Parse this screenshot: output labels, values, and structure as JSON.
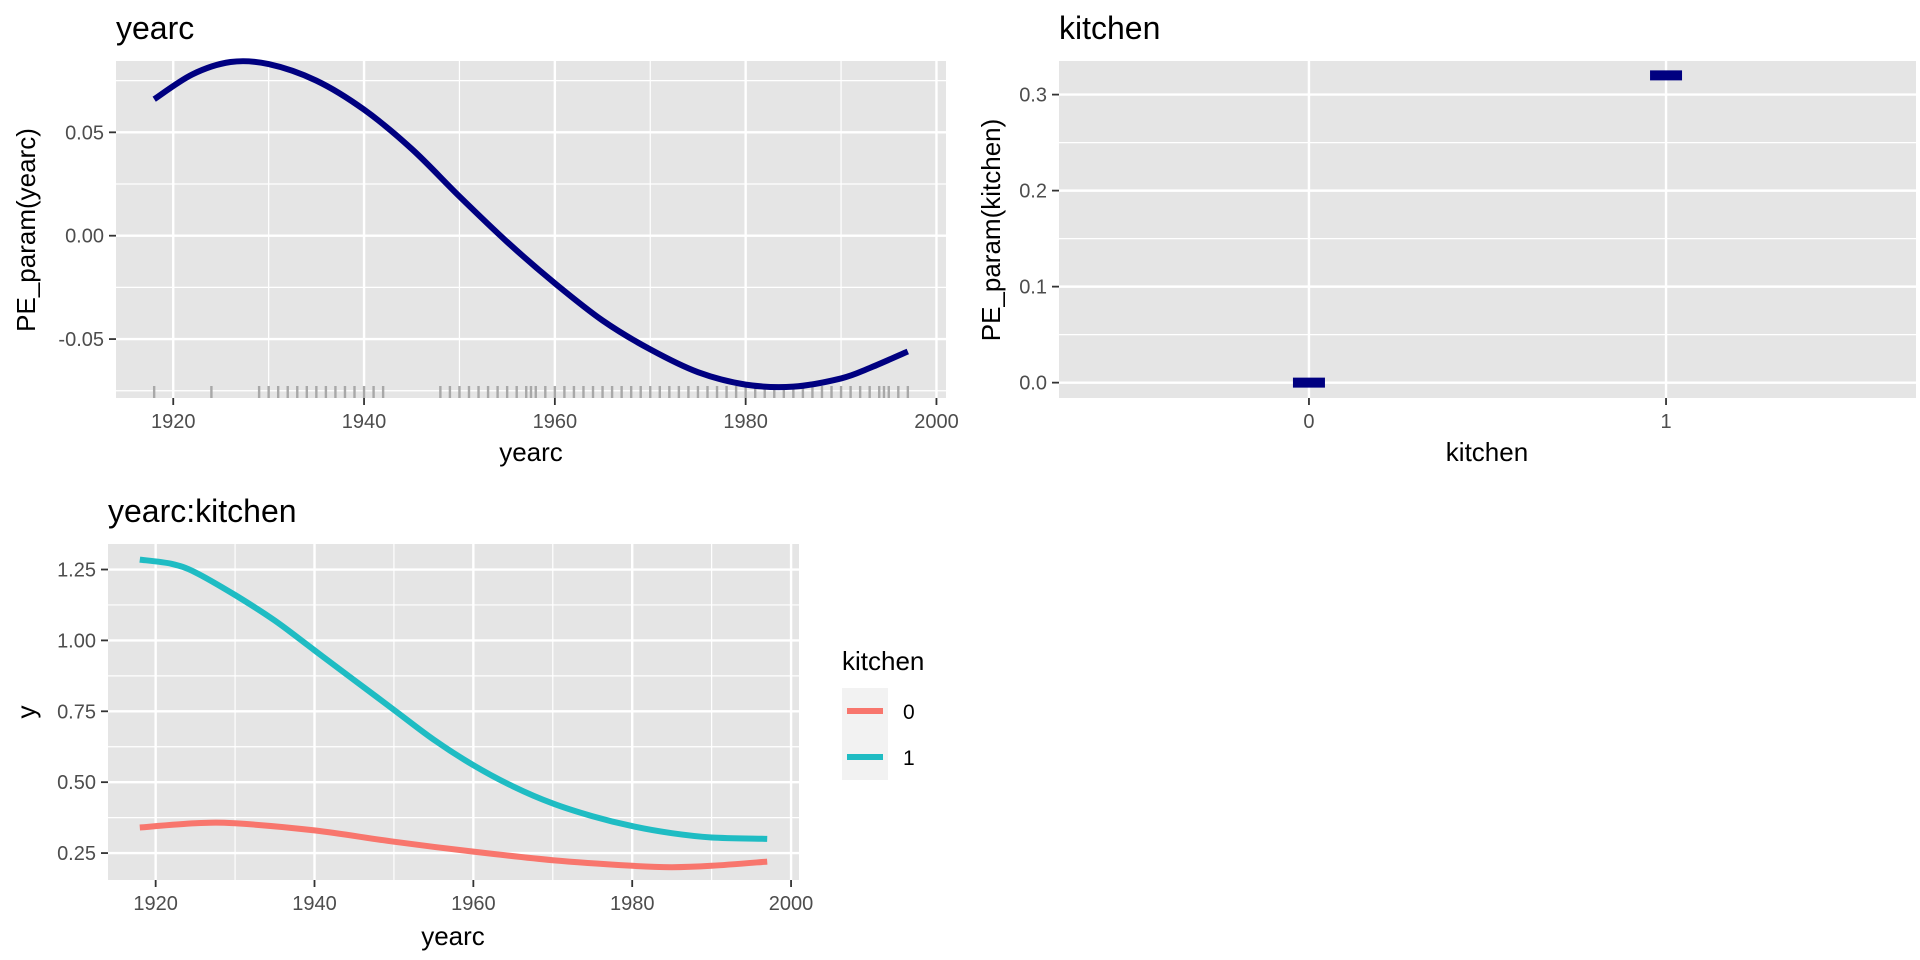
{
  "colors": {
    "panel_bg": "#e5e5e5",
    "grid": "#ffffff",
    "tick": "#333333",
    "tick_text": "#4d4d4d",
    "navy": "#000080",
    "rug": "#a8a8a8",
    "series_0": "#f8766d",
    "series_1": "#1fbcc3",
    "legend_bg": "#f2f2f2"
  },
  "chart_data": [
    {
      "type": "line",
      "title": "yearc",
      "xlabel": "yearc",
      "ylabel": "PE_param(yearc)",
      "xlim": [
        1914,
        2001
      ],
      "ylim": [
        -0.0785,
        0.0845
      ],
      "x_ticks": [
        1920,
        1940,
        1960,
        1980,
        2000
      ],
      "x_tick_labels": [
        "1920",
        "1940",
        "1960",
        "1980",
        "2000"
      ],
      "y_ticks": [
        -0.05,
        0.0,
        0.05
      ],
      "y_tick_labels": [
        "-0.05",
        "0.00",
        "0.05"
      ],
      "grid": true,
      "series": [
        {
          "color": "#000080",
          "x": [
            1918,
            1922,
            1926,
            1930,
            1935,
            1940,
            1945,
            1950,
            1955,
            1960,
            1965,
            1970,
            1975,
            1980,
            1985,
            1990,
            1993,
            1997
          ],
          "values": [
            0.066,
            0.078,
            0.084,
            0.083,
            0.075,
            0.061,
            0.042,
            0.019,
            -0.003,
            -0.023,
            -0.041,
            -0.055,
            -0.066,
            -0.072,
            -0.073,
            -0.069,
            -0.064,
            -0.056
          ]
        }
      ],
      "rug_x": [
        1918,
        1924,
        1929,
        1930,
        1931,
        1932,
        1933,
        1934,
        1935,
        1936,
        1937,
        1938,
        1939,
        1940,
        1941,
        1942,
        1948,
        1949,
        1950,
        1951,
        1952,
        1953,
        1954,
        1955,
        1956,
        1957,
        1957.5,
        1958,
        1959,
        1960,
        1961,
        1962,
        1963,
        1964,
        1965,
        1966,
        1967,
        1968,
        1969,
        1970,
        1971,
        1972,
        1973,
        1974,
        1975,
        1976,
        1977,
        1978,
        1979,
        1980,
        1981,
        1982,
        1983,
        1984,
        1985,
        1986,
        1987,
        1988,
        1989,
        1990,
        1991,
        1992,
        1993,
        1994,
        1994.5,
        1995,
        1996,
        1997
      ]
    },
    {
      "type": "scatter",
      "title": "kitchen",
      "xlabel": "kitchen",
      "ylabel": "PE_param(kitchen)",
      "categories": [
        "0",
        "1"
      ],
      "values": [
        0.0,
        0.32
      ],
      "ylim": [
        -0.016,
        0.335
      ],
      "y_ticks": [
        0.0,
        0.1,
        0.2,
        0.3
      ],
      "y_tick_labels": [
        "0.0",
        "0.1",
        "0.2",
        "0.3"
      ],
      "grid": true,
      "marker_color": "#000080"
    },
    {
      "type": "line",
      "title": "yearc:kitchen",
      "xlabel": "yearc",
      "ylabel": "y",
      "xlim": [
        1914,
        2001
      ],
      "ylim": [
        0.155,
        1.34
      ],
      "x_ticks": [
        1920,
        1940,
        1960,
        1980,
        2000
      ],
      "x_tick_labels": [
        "1920",
        "1940",
        "1960",
        "1980",
        "2000"
      ],
      "y_ticks": [
        0.25,
        0.5,
        0.75,
        1.0,
        1.25
      ],
      "y_tick_labels": [
        "0.25",
        "0.50",
        "0.75",
        "1.00",
        "1.25"
      ],
      "grid": true,
      "legend_title": "kitchen",
      "legend_position": "right",
      "series": [
        {
          "name": "0",
          "color": "#f8766d",
          "x": [
            1918,
            1925,
            1930,
            1940,
            1950,
            1960,
            1970,
            1980,
            1985,
            1990,
            1997
          ],
          "values": [
            0.34,
            0.355,
            0.355,
            0.33,
            0.29,
            0.255,
            0.225,
            0.205,
            0.2,
            0.205,
            0.22
          ]
        },
        {
          "name": "1",
          "color": "#1fbcc3",
          "x": [
            1918,
            1922,
            1925,
            1930,
            1935,
            1940,
            1945,
            1950,
            1955,
            1960,
            1965,
            1970,
            1975,
            1980,
            1985,
            1990,
            1997
          ],
          "values": [
            1.285,
            1.27,
            1.24,
            1.16,
            1.07,
            0.965,
            0.86,
            0.755,
            0.65,
            0.56,
            0.485,
            0.425,
            0.38,
            0.345,
            0.32,
            0.305,
            0.3
          ]
        }
      ]
    }
  ]
}
